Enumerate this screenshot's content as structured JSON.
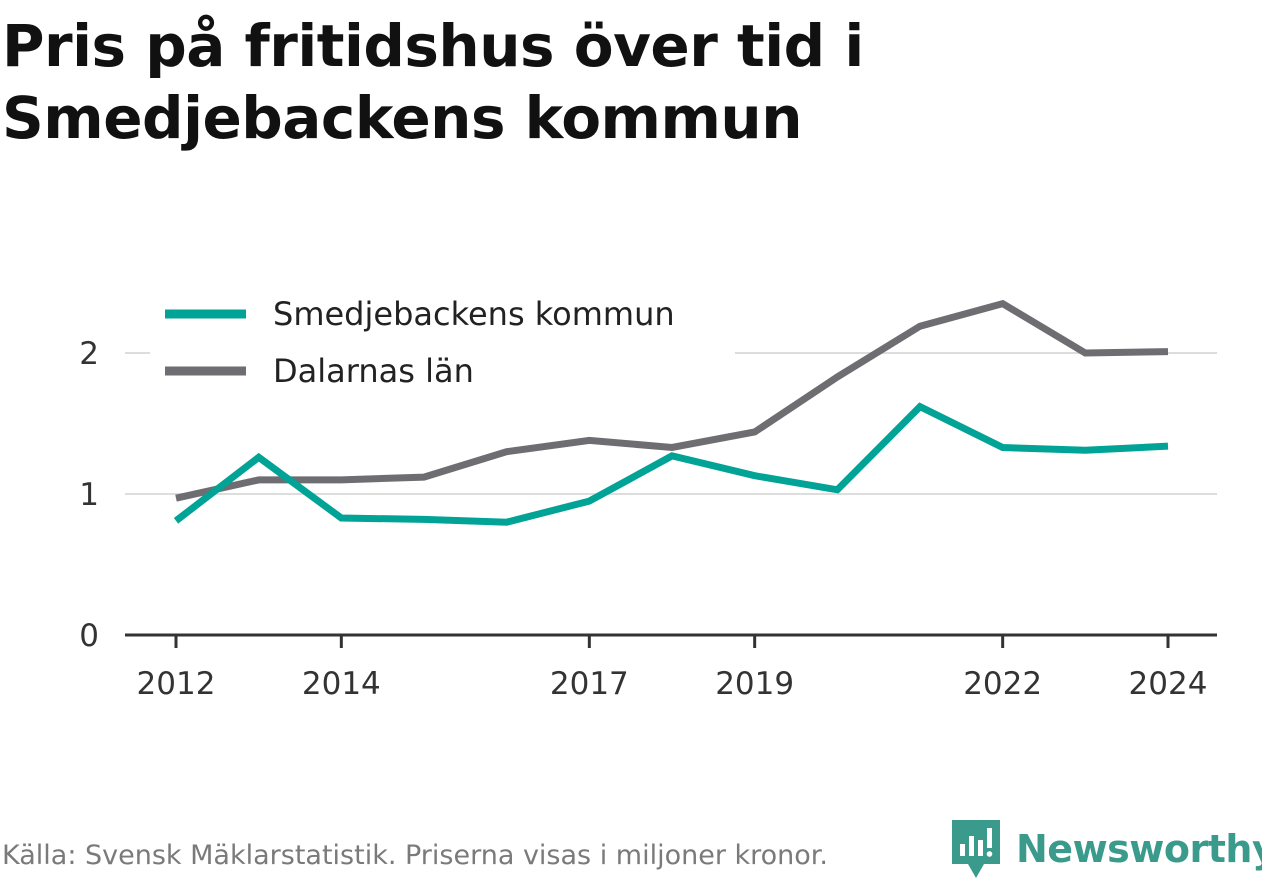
{
  "title": "Pris på fritidshus över tid i Smedjebackens kommun",
  "footer": {
    "source": "Källa: Svensk Mäklarstatistik. Priserna visas i miljoner kronor."
  },
  "brand": {
    "name": "Newsworthy",
    "icon": "newsworthy-logo-icon",
    "color": "#3a9a8c"
  },
  "chart_data": {
    "type": "line",
    "x": [
      2012,
      2013,
      2014,
      2015,
      2016,
      2017,
      2018,
      2019,
      2020,
      2021,
      2022,
      2023,
      2024
    ],
    "x_ticks": [
      "2012",
      "2014",
      "2017",
      "2019",
      "2022",
      "2024"
    ],
    "y_ticks": [
      "0",
      "1",
      "2"
    ],
    "ylim": [
      0,
      2.5
    ],
    "grid": true,
    "legend_position": "top-left",
    "series": [
      {
        "name": "Smedjebackens kommun",
        "color": "#00a396",
        "values": [
          0.81,
          1.26,
          0.83,
          0.82,
          0.8,
          0.95,
          1.27,
          1.13,
          1.03,
          1.62,
          1.33,
          1.31,
          1.34
        ]
      },
      {
        "name": "Dalarnas län",
        "color": "#6e6d72",
        "values": [
          0.97,
          1.1,
          1.1,
          1.12,
          1.3,
          1.38,
          1.33,
          1.44,
          1.83,
          2.19,
          2.35,
          2.0,
          2.01
        ]
      }
    ],
    "title": "",
    "xlabel": "",
    "ylabel": ""
  }
}
